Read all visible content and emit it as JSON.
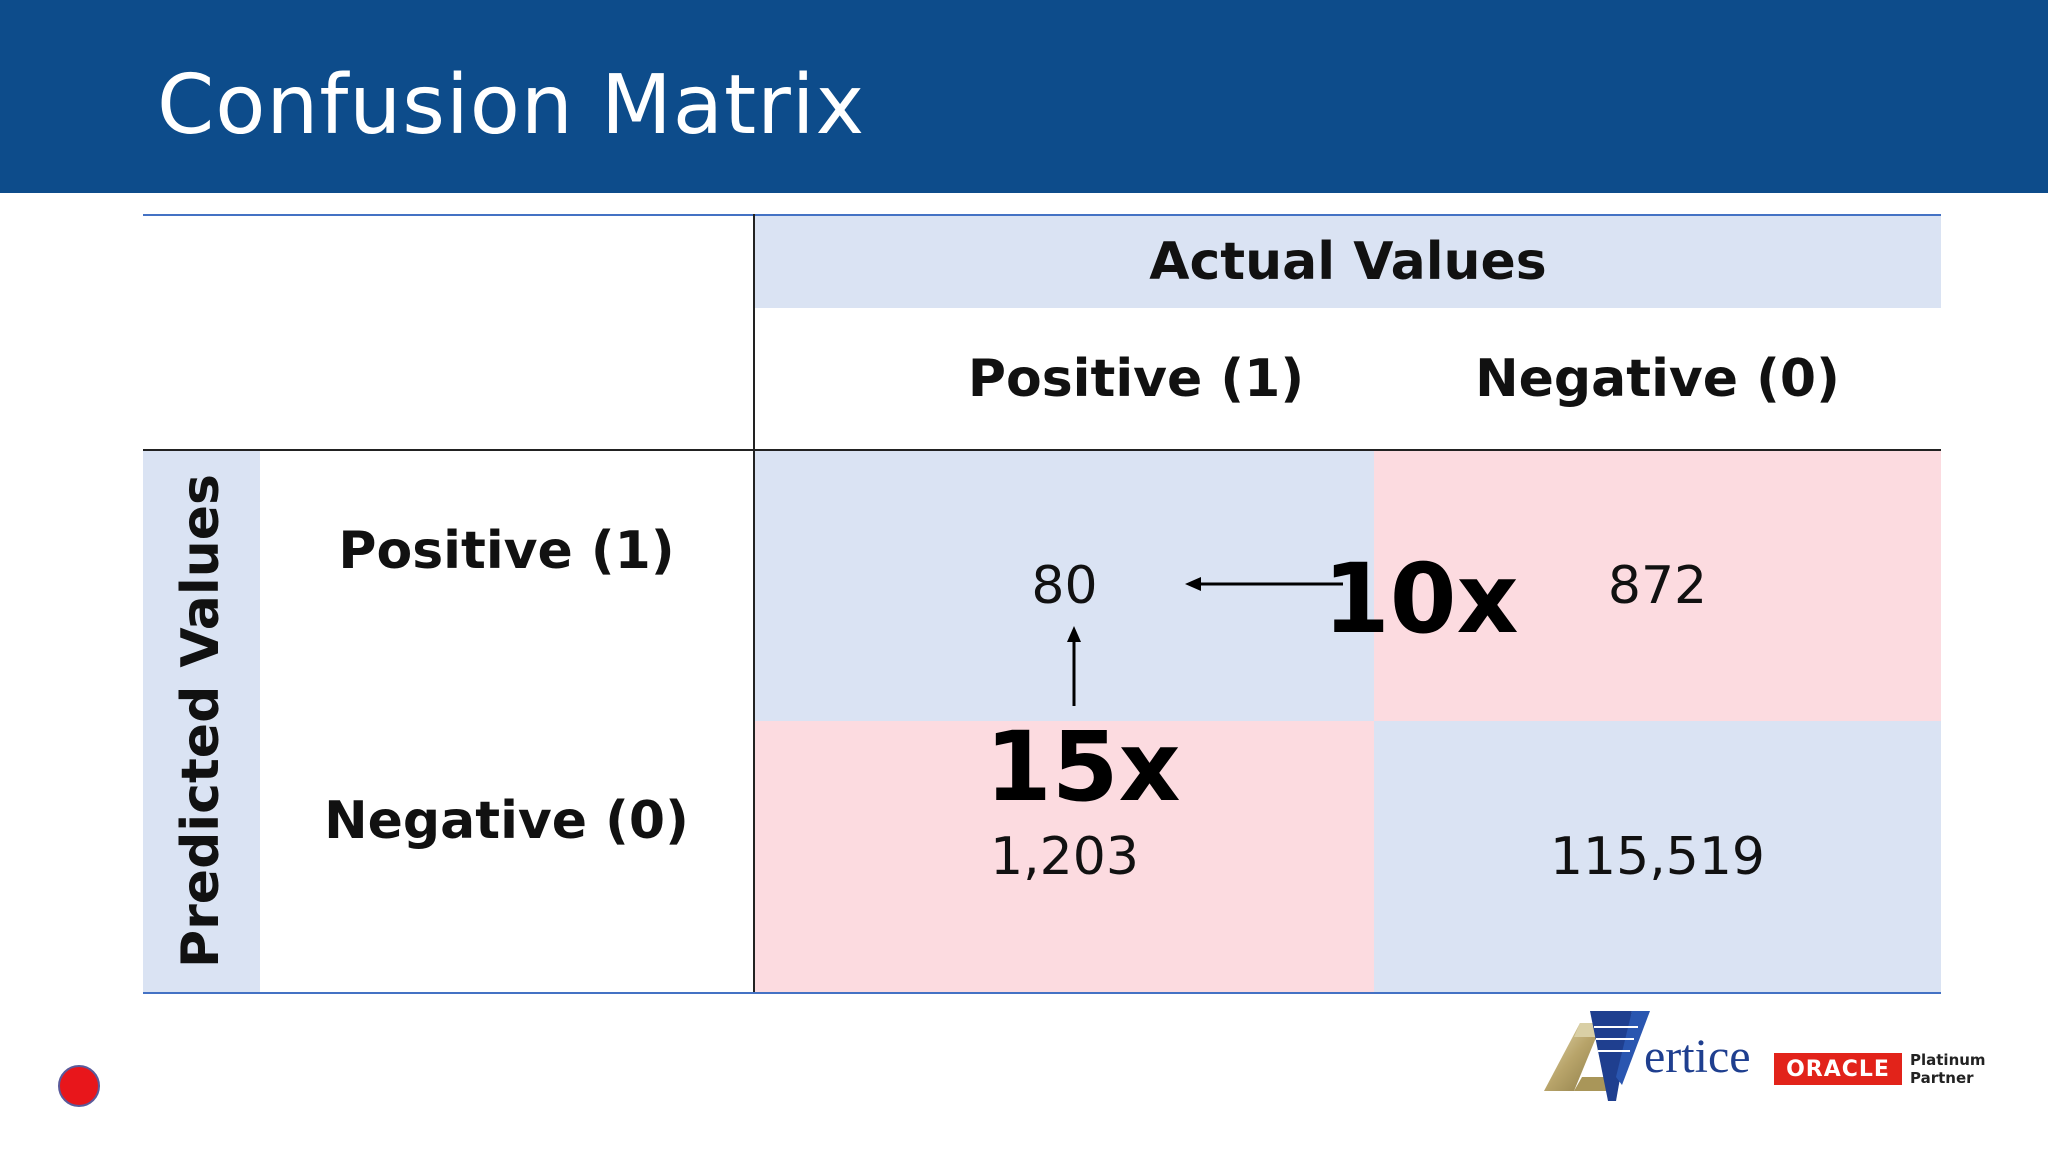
{
  "slide": {
    "title": "Confusion Matrix"
  },
  "matrix": {
    "actual_header": "Actual Values",
    "predicted_header": "Predicted Values",
    "columns": [
      "Positive (1)",
      "Negative (0)"
    ],
    "rows": [
      "Positive (1)",
      "Negative (0)"
    ],
    "cells": {
      "tp": "80",
      "fp": "872",
      "fn": "1,203",
      "tn": "115,519"
    },
    "annotations": {
      "fp_multiplier": "10x",
      "fn_multiplier": "15x"
    }
  },
  "colors": {
    "title_bar": "#0d4c8b",
    "correct_cell": "#dae3f3",
    "error_cell": "#fcdbe0",
    "oracle_red": "#e2231a"
  },
  "logo": {
    "brand": "ertice",
    "partner_brand": "ORACLE",
    "partner_line1": "Platinum",
    "partner_line2": "Partner"
  }
}
